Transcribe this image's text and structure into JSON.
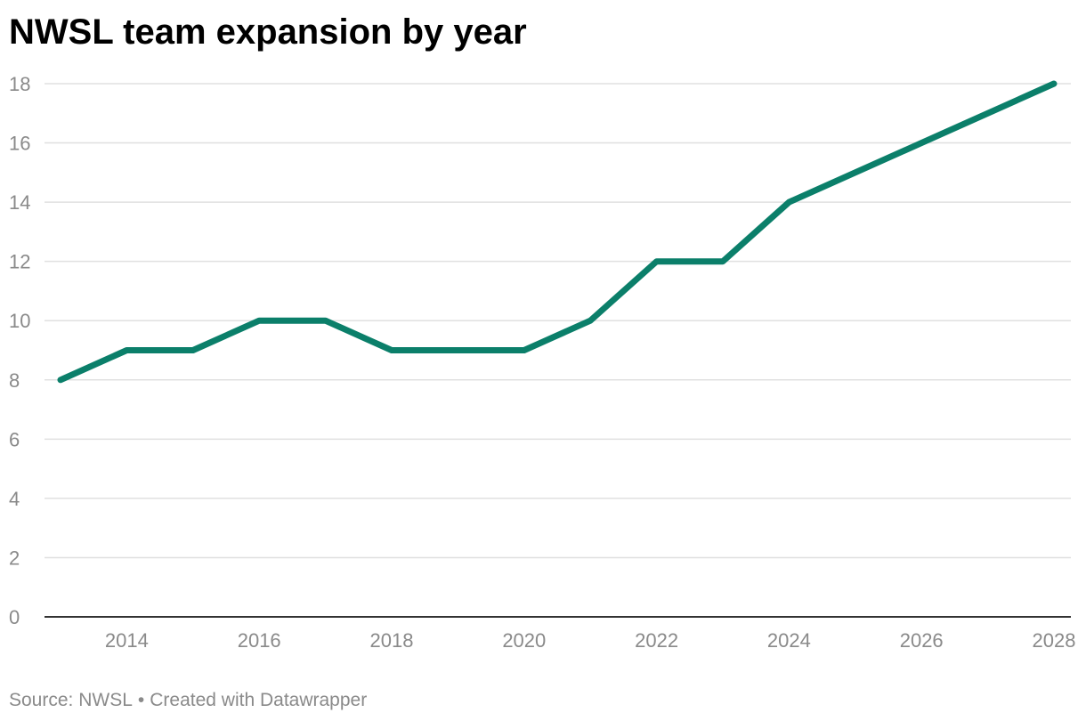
{
  "title": "NWSL team expansion by year",
  "footer": {
    "source": "Source: NWSL",
    "separator": "•",
    "credit": "Created with Datawrapper"
  },
  "colors": {
    "line": "#0b7f6a",
    "grid": "#e0e0e0",
    "baseline": "#333333",
    "tick_text": "#8a8a8a"
  },
  "chart_data": {
    "type": "line",
    "title": "NWSL team expansion by year",
    "xlabel": "",
    "ylabel": "",
    "x": [
      2013,
      2014,
      2015,
      2016,
      2017,
      2018,
      2019,
      2020,
      2021,
      2022,
      2023,
      2024,
      2025,
      2026,
      2027,
      2028
    ],
    "series": [
      {
        "values": [
          8,
          9,
          9,
          10,
          10,
          9,
          9,
          9,
          10,
          12,
          12,
          14,
          15,
          16,
          17,
          18
        ]
      }
    ],
    "xlim": [
      2013,
      2028
    ],
    "ylim": [
      0,
      18
    ],
    "x_ticks": [
      "2014",
      "2016",
      "2018",
      "2020",
      "2022",
      "2024",
      "2026",
      "2028"
    ],
    "y_ticks": [
      "0",
      "2",
      "4",
      "6",
      "8",
      "10",
      "12",
      "14",
      "16",
      "18"
    ],
    "grid": true,
    "legend": "none"
  }
}
